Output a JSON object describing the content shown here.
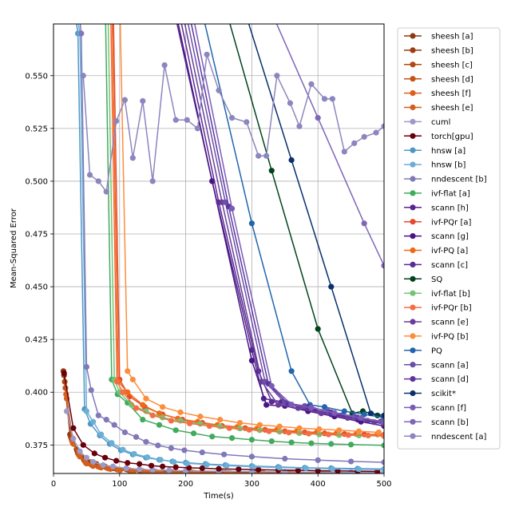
{
  "chart_data": {
    "type": "line",
    "title": "",
    "xlabel": "Time(s)",
    "ylabel": "Mean-Squared Error",
    "xlim": [
      0,
      500
    ],
    "ylim": [
      0.3615,
      0.5745
    ],
    "xticks": [
      0,
      100,
      200,
      300,
      400,
      500
    ],
    "yticks": [
      0.375,
      0.4,
      0.425,
      0.45,
      0.475,
      0.5,
      0.525,
      0.55
    ],
    "ytick_labels": [
      "0.375",
      "0.400",
      "0.425",
      "0.450",
      "0.475",
      "0.500",
      "0.525",
      "0.550"
    ],
    "grid": true,
    "legend_position": "outside-right",
    "series": [
      {
        "name": "sheesh [a]",
        "color": "#8b3a0f",
        "x": [
          15,
          25,
          35,
          45,
          55,
          65,
          75,
          90,
          110,
          130,
          150,
          175,
          200,
          250,
          300,
          350,
          400,
          450,
          500
        ],
        "y": [
          0.41,
          0.38,
          0.373,
          0.369,
          0.367,
          0.366,
          0.365,
          0.364,
          0.3635,
          0.363,
          0.3628,
          0.3626,
          0.3624,
          0.3622,
          0.362,
          0.3618,
          0.3617,
          0.3616,
          0.3615
        ]
      },
      {
        "name": "sheesh [b]",
        "color": "#9c3d10",
        "x": [
          16,
          26,
          36,
          46,
          56,
          66,
          78,
          92,
          112,
          132,
          152,
          178,
          205,
          255,
          305,
          355,
          405,
          455,
          500
        ],
        "y": [
          0.408,
          0.379,
          0.372,
          0.368,
          0.366,
          0.3655,
          0.3648,
          0.364,
          0.3633,
          0.3628,
          0.3625,
          0.3623,
          0.3621,
          0.3619,
          0.3618,
          0.3617,
          0.3616,
          0.3615,
          0.3615
        ]
      },
      {
        "name": "sheesh [c]",
        "color": "#b04a12",
        "x": [
          17,
          27,
          37,
          47,
          57,
          67,
          80,
          95,
          115,
          135,
          155,
          180,
          210,
          260,
          310,
          360,
          410,
          460,
          500
        ],
        "y": [
          0.405,
          0.378,
          0.371,
          0.3675,
          0.3658,
          0.365,
          0.3643,
          0.3636,
          0.363,
          0.3626,
          0.3623,
          0.3621,
          0.362,
          0.3618,
          0.3617,
          0.3616,
          0.3616,
          0.3615,
          0.3615
        ]
      },
      {
        "name": "sheesh [d]",
        "color": "#c55416",
        "x": [
          18,
          28,
          38,
          48,
          58,
          68,
          82,
          97,
          117,
          137,
          157,
          182,
          212,
          262,
          312,
          362,
          412,
          462,
          500
        ],
        "y": [
          0.402,
          0.377,
          0.3705,
          0.367,
          0.3655,
          0.3647,
          0.364,
          0.3633,
          0.3628,
          0.3624,
          0.3621,
          0.362,
          0.3619,
          0.3617,
          0.3616,
          0.3616,
          0.3615,
          0.3615,
          0.3615
        ]
      },
      {
        "name": "sheesh [f]",
        "color": "#dd5e1a",
        "x": [
          19,
          29,
          39,
          49,
          59,
          70,
          84,
          99,
          120,
          140,
          160,
          185,
          215,
          265,
          315,
          365,
          415,
          465,
          500
        ],
        "y": [
          0.399,
          0.376,
          0.37,
          0.3665,
          0.3652,
          0.3645,
          0.3638,
          0.3632,
          0.3627,
          0.3623,
          0.362,
          0.3619,
          0.3618,
          0.3617,
          0.3616,
          0.3615,
          0.3615,
          0.3615,
          0.3615
        ]
      },
      {
        "name": "sheesh [e]",
        "color": "#d0601c",
        "x": [
          20,
          30,
          40,
          50,
          60,
          72,
          86,
          101,
          122,
          142,
          162,
          188,
          218,
          268,
          318,
          368,
          418,
          468,
          500
        ],
        "y": [
          0.397,
          0.3755,
          0.3695,
          0.3662,
          0.365,
          0.3643,
          0.3636,
          0.3631,
          0.3626,
          0.3622,
          0.362,
          0.3618,
          0.3617,
          0.3616,
          0.3616,
          0.3615,
          0.3615,
          0.3615,
          0.3615
        ]
      },
      {
        "name": "cuml",
        "color": "#9e9ac8",
        "x": [
          20,
          30,
          40,
          50,
          60,
          75,
          90,
          110,
          130,
          150,
          175,
          200,
          250,
          300,
          350,
          400,
          450,
          500
        ],
        "y": [
          0.391,
          0.378,
          0.372,
          0.369,
          0.367,
          0.3655,
          0.3648,
          0.364,
          0.3635,
          0.3632,
          0.363,
          0.3628,
          0.3626,
          0.3624,
          0.3622,
          0.3621,
          0.362,
          0.362
        ]
      },
      {
        "name": "torch[gpu]",
        "color": "#67000d",
        "x": [
          16,
          30,
          45,
          62,
          78,
          95,
          112,
          130,
          148,
          165,
          185,
          205,
          225,
          250,
          280,
          310,
          340,
          370,
          400,
          430,
          460,
          490
        ],
        "y": [
          0.409,
          0.383,
          0.375,
          0.371,
          0.369,
          0.3675,
          0.3665,
          0.366,
          0.3652,
          0.3648,
          0.3645,
          0.3642,
          0.364,
          0.3637,
          0.3635,
          0.3633,
          0.3631,
          0.363,
          0.3628,
          0.3627,
          0.3626,
          0.3625
        ]
      },
      {
        "name": "hnsw [a]",
        "color": "#4f97c7",
        "x": [
          28,
          37,
          47,
          56,
          70,
          85,
          102,
          120,
          140,
          160,
          180,
          200,
          230,
          260,
          300,
          340,
          380,
          420,
          460,
          500
        ],
        "y": [
          0.59,
          0.57,
          0.392,
          0.385,
          0.3795,
          0.3755,
          0.3725,
          0.3705,
          0.369,
          0.368,
          0.3672,
          0.3666,
          0.366,
          0.3655,
          0.365,
          0.3646,
          0.3642,
          0.364,
          0.3638,
          0.3636
        ]
      },
      {
        "name": "hnsw [b]",
        "color": "#6baed6",
        "x": [
          30,
          40,
          50,
          60,
          72,
          88,
          105,
          122,
          142,
          162,
          182,
          202,
          232,
          262,
          302,
          342,
          382,
          422,
          462,
          500
        ],
        "y": [
          0.59,
          0.57,
          0.391,
          0.386,
          0.38,
          0.376,
          0.3728,
          0.3708,
          0.3692,
          0.368,
          0.367,
          0.3663,
          0.3657,
          0.3652,
          0.3647,
          0.3643,
          0.364,
          0.3637,
          0.3635,
          0.3633
        ]
      },
      {
        "name": "nndescent [b]",
        "color": "#8078b8",
        "x": [
          35,
          42,
          50,
          57,
          68,
          80,
          92,
          108,
          125,
          140,
          158,
          178,
          198,
          225,
          258,
          300,
          350,
          400,
          450,
          500
        ],
        "y": [
          0.59,
          0.57,
          0.412,
          0.401,
          0.389,
          0.387,
          0.3845,
          0.381,
          0.3788,
          0.3765,
          0.3748,
          0.3735,
          0.3725,
          0.3715,
          0.3705,
          0.3695,
          0.3685,
          0.3678,
          0.3672,
          0.3668
        ]
      },
      {
        "name": "ivf-flat [a]",
        "color": "#41ab5d",
        "x": [
          78,
          88,
          97,
          112,
          135,
          160,
          185,
          212,
          240,
          270,
          300,
          330,
          360,
          390,
          420,
          450,
          500
        ],
        "y": [
          0.59,
          0.406,
          0.399,
          0.395,
          0.387,
          0.3845,
          0.382,
          0.3805,
          0.379,
          0.3783,
          0.3775,
          0.3768,
          0.3762,
          0.3758,
          0.3755,
          0.3752,
          0.3748
        ]
      },
      {
        "name": "scann [h]",
        "color": "#54278f",
        "x": [
          183,
          240,
          300,
          318,
          345,
          380,
          420,
          460,
          500
        ],
        "y": [
          0.58,
          0.5,
          0.42,
          0.397,
          0.3955,
          0.3925,
          0.3895,
          0.387,
          0.385
        ]
      },
      {
        "name": "ivf-PQr [a]",
        "color": "#e34a33",
        "x": [
          90,
          100,
          115,
          138,
          165,
          195,
          225,
          255,
          290,
          320,
          350,
          380,
          410,
          440,
          470,
          500
        ],
        "y": [
          0.59,
          0.406,
          0.398,
          0.393,
          0.3895,
          0.387,
          0.3855,
          0.384,
          0.383,
          0.3822,
          0.3815,
          0.381,
          0.3805,
          0.3802,
          0.38,
          0.3798
        ]
      },
      {
        "name": "scann [g]",
        "color": "#4a1486",
        "x": [
          185,
          240,
          300,
          322,
          350,
          385,
          425,
          465,
          500
        ],
        "y": [
          0.58,
          0.5,
          0.415,
          0.394,
          0.3935,
          0.391,
          0.3885,
          0.386,
          0.384
        ]
      },
      {
        "name": "ivf-PQ [a]",
        "color": "#f16913",
        "x": [
          88,
          98,
          112,
          135,
          160,
          188,
          218,
          248,
          278,
          308,
          338,
          368,
          398,
          428,
          458,
          490
        ],
        "y": [
          0.59,
          0.405,
          0.4,
          0.394,
          0.39,
          0.3875,
          0.386,
          0.3845,
          0.3835,
          0.3828,
          0.3822,
          0.3815,
          0.381,
          0.3805,
          0.3802,
          0.38
        ]
      },
      {
        "name": "scann [c]",
        "color": "#5b2a96",
        "x": [
          190,
          250,
          310,
          330,
          360,
          395,
          435,
          475,
          500
        ],
        "y": [
          0.58,
          0.49,
          0.41,
          0.3955,
          0.394,
          0.3915,
          0.389,
          0.3865,
          0.3855
        ]
      },
      {
        "name": "SQ",
        "color": "#00441b",
        "x": [
          262,
          330,
          400,
          452,
          468,
          490,
          500
        ],
        "y": [
          0.58,
          0.505,
          0.43,
          0.39,
          0.391,
          0.389,
          0.388
        ]
      },
      {
        "name": "ivf-flat [b]",
        "color": "#74c476",
        "x": [
          82,
          92,
          100,
          118,
          140,
          165,
          192,
          222,
          252,
          282,
          312,
          342,
          372,
          402,
          432,
          462,
          500
        ],
        "y": [
          0.59,
          0.406,
          0.4,
          0.394,
          0.391,
          0.388,
          0.3865,
          0.385,
          0.3838,
          0.3828,
          0.382,
          0.3813,
          0.3806,
          0.38,
          0.3797,
          0.3795,
          0.3792
        ]
      },
      {
        "name": "ivf-PQr [b]",
        "color": "#f46d43",
        "x": [
          86,
          96,
          105,
          125,
          150,
          178,
          206,
          236,
          266,
          296,
          326,
          356,
          386,
          416,
          446,
          476,
          500
        ],
        "y": [
          0.59,
          0.405,
          0.4,
          0.3925,
          0.389,
          0.3865,
          0.3852,
          0.384,
          0.383,
          0.3822,
          0.3815,
          0.3809,
          0.3804,
          0.38,
          0.3797,
          0.3795,
          0.3793
        ]
      },
      {
        "name": "scann [e]",
        "color": "#6a3d9a",
        "x": [
          195,
          255,
          315,
          340,
          370,
          405,
          445,
          485,
          500
        ],
        "y": [
          0.58,
          0.49,
          0.405,
          0.394,
          0.3925,
          0.39,
          0.3878,
          0.3858,
          0.385
        ]
      },
      {
        "name": "ivf-PQ [b]",
        "color": "#fd8d3c",
        "x": [
          100,
          112,
          120,
          140,
          165,
          192,
          222,
          252,
          282,
          312,
          342,
          372,
          402,
          432,
          462,
          492
        ],
        "y": [
          0.59,
          0.41,
          0.406,
          0.397,
          0.393,
          0.3905,
          0.3885,
          0.387,
          0.3855,
          0.3845,
          0.3838,
          0.383,
          0.3825,
          0.382,
          0.3815,
          0.381
        ]
      },
      {
        "name": "PQ",
        "color": "#2166ac",
        "x": [
          225,
          300,
          360,
          388,
          410,
          440,
          470,
          500
        ],
        "y": [
          0.58,
          0.48,
          0.41,
          0.394,
          0.393,
          0.391,
          0.3895,
          0.388
        ]
      },
      {
        "name": "scann [a]",
        "color": "#6b4fa8",
        "x": [
          200,
          260,
          320,
          350,
          380,
          415,
          455,
          495,
          500
        ],
        "y": [
          0.58,
          0.49,
          0.405,
          0.395,
          0.3935,
          0.391,
          0.3885,
          0.3862,
          0.386
        ]
      },
      {
        "name": "scann [d]",
        "color": "#5e35a0",
        "x": [
          205,
          265,
          325,
          355,
          385,
          420,
          460,
          500
        ],
        "y": [
          0.58,
          0.488,
          0.404,
          0.3945,
          0.393,
          0.3905,
          0.388,
          0.3858
        ]
      },
      {
        "name": "scikit*",
        "color": "#08306b",
        "x": [
          290,
          360,
          420,
          480,
          500
        ],
        "y": [
          0.58,
          0.51,
          0.45,
          0.39,
          0.389
        ]
      },
      {
        "name": "scann [f]",
        "color": "#7a5cb6",
        "x": [
          210,
          270,
          330,
          360,
          390,
          425,
          465,
          500
        ],
        "y": [
          0.58,
          0.487,
          0.403,
          0.3942,
          0.3927,
          0.3902,
          0.3878,
          0.3858
        ]
      },
      {
        "name": "scann [b]",
        "color": "#7f66b8",
        "x": [
          330,
          400,
          470,
          500
        ],
        "y": [
          0.58,
          0.53,
          0.48,
          0.46
        ]
      },
      {
        "name": "nndescent [a]",
        "color": "#8c86bf",
        "x": [
          45,
          55,
          68,
          80,
          95,
          108,
          120,
          135,
          150,
          168,
          185,
          202,
          218,
          232,
          250,
          270,
          292,
          310,
          322,
          338,
          358,
          372,
          390,
          410,
          422,
          440,
          455,
          470,
          488,
          500
        ],
        "y": [
          0.55,
          0.503,
          0.5,
          0.495,
          0.5285,
          0.5385,
          0.511,
          0.538,
          0.5,
          0.555,
          0.529,
          0.529,
          0.525,
          0.56,
          0.543,
          0.53,
          0.528,
          0.512,
          0.512,
          0.55,
          0.537,
          0.526,
          0.546,
          0.539,
          0.539,
          0.514,
          0.518,
          0.521,
          0.523,
          0.526
        ]
      }
    ]
  }
}
